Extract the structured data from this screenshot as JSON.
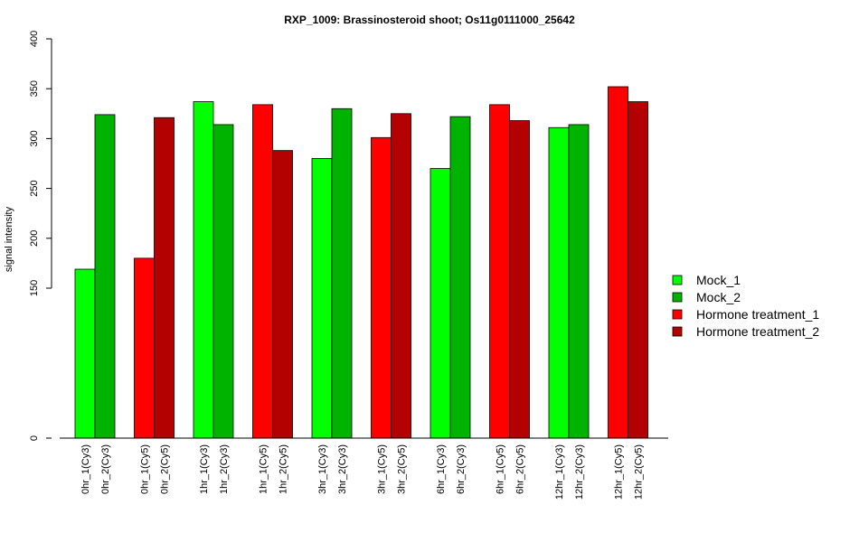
{
  "chart_data": {
    "type": "bar",
    "title": "RXP_1009: Brassinosteroid shoot; Os11g0111000_25642",
    "ylabel": "signal intensity",
    "xlabel": "",
    "ylim": [
      0,
      400
    ],
    "y_ticks": [
      0,
      150,
      200,
      250,
      300,
      350,
      400
    ],
    "y_scale": "broken: 0 at baseline, linear between 150 and 400",
    "grid": false,
    "legend_position": "right",
    "categories": [
      "0hr_1(Cy3)",
      "0hr_2(Cy3)",
      "0hr_1(Cy5)",
      "0hr_2(Cy5)",
      "1hr_1(Cy3)",
      "1hr_2(Cy3)",
      "1hr_1(Cy5)",
      "1hr_2(Cy5)",
      "3hr_1(Cy3)",
      "3hr_2(Cy3)",
      "3hr_1(Cy5)",
      "3hr_2(Cy5)",
      "6hr_1(Cy3)",
      "6hr_2(Cy3)",
      "6hr_1(Cy5)",
      "6hr_2(Cy5)",
      "12hr_1(Cy3)",
      "12hr_2(Cy3)",
      "12hr_1(Cy5)",
      "12hr_2(Cy5)"
    ],
    "values": [
      169,
      324,
      180,
      321,
      337,
      314,
      334,
      288,
      280,
      330,
      301,
      325,
      270,
      322,
      334,
      318,
      311,
      314,
      352,
      337
    ],
    "bar_series": [
      0,
      1,
      2,
      3,
      0,
      1,
      2,
      3,
      0,
      1,
      2,
      3,
      0,
      1,
      2,
      3,
      0,
      1,
      2,
      3
    ],
    "series": [
      {
        "name": "Mock_1",
        "color": "#00ff00"
      },
      {
        "name": "Mock_2",
        "color": "#00b300"
      },
      {
        "name": "Hormone treatment_1",
        "color": "#ff0000"
      },
      {
        "name": "Hormone treatment_2",
        "color": "#b30000"
      }
    ]
  }
}
